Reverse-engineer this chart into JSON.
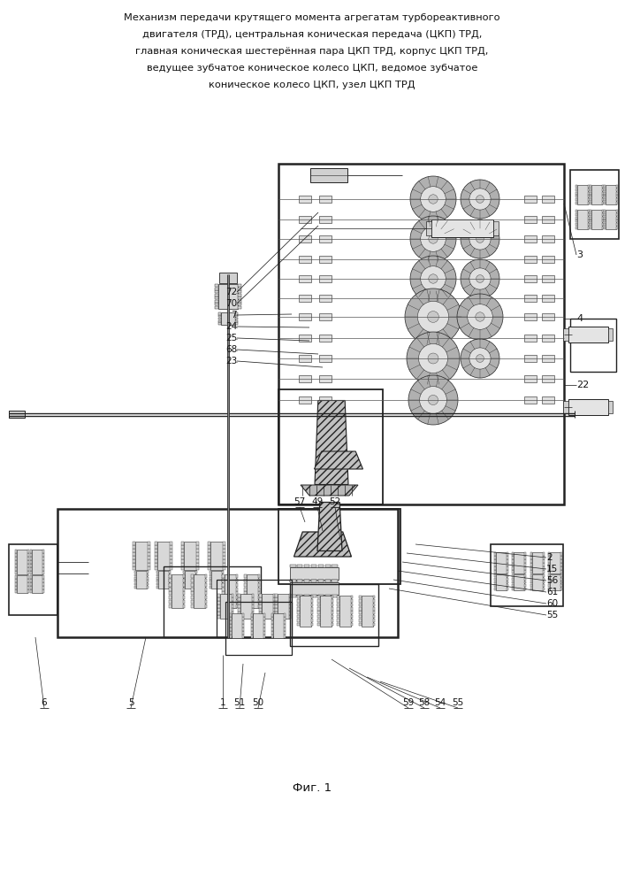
{
  "title_lines": [
    "Механизм передачи крутящего момента агрегатам турбореактивного",
    "двигателя (ТРД), центральная коническая передача (ЦКП) ТРД,",
    "главная коническая шестерённая пара ЦКП ТРД, корпус ЦКП ТРД,",
    "ведущее зубчатое коническое колесо ЦКП, ведомое зубчатое",
    "коническое колесо ЦКП, узел ЦКП ТРД"
  ],
  "fig_label": "Фиг. 1",
  "bg_color": "#ffffff",
  "lc": "#222222",
  "tc": "#111111",
  "title_fontsize": 8.2,
  "fig_fontsize": 9.5,
  "label_fontsize": 7.5
}
